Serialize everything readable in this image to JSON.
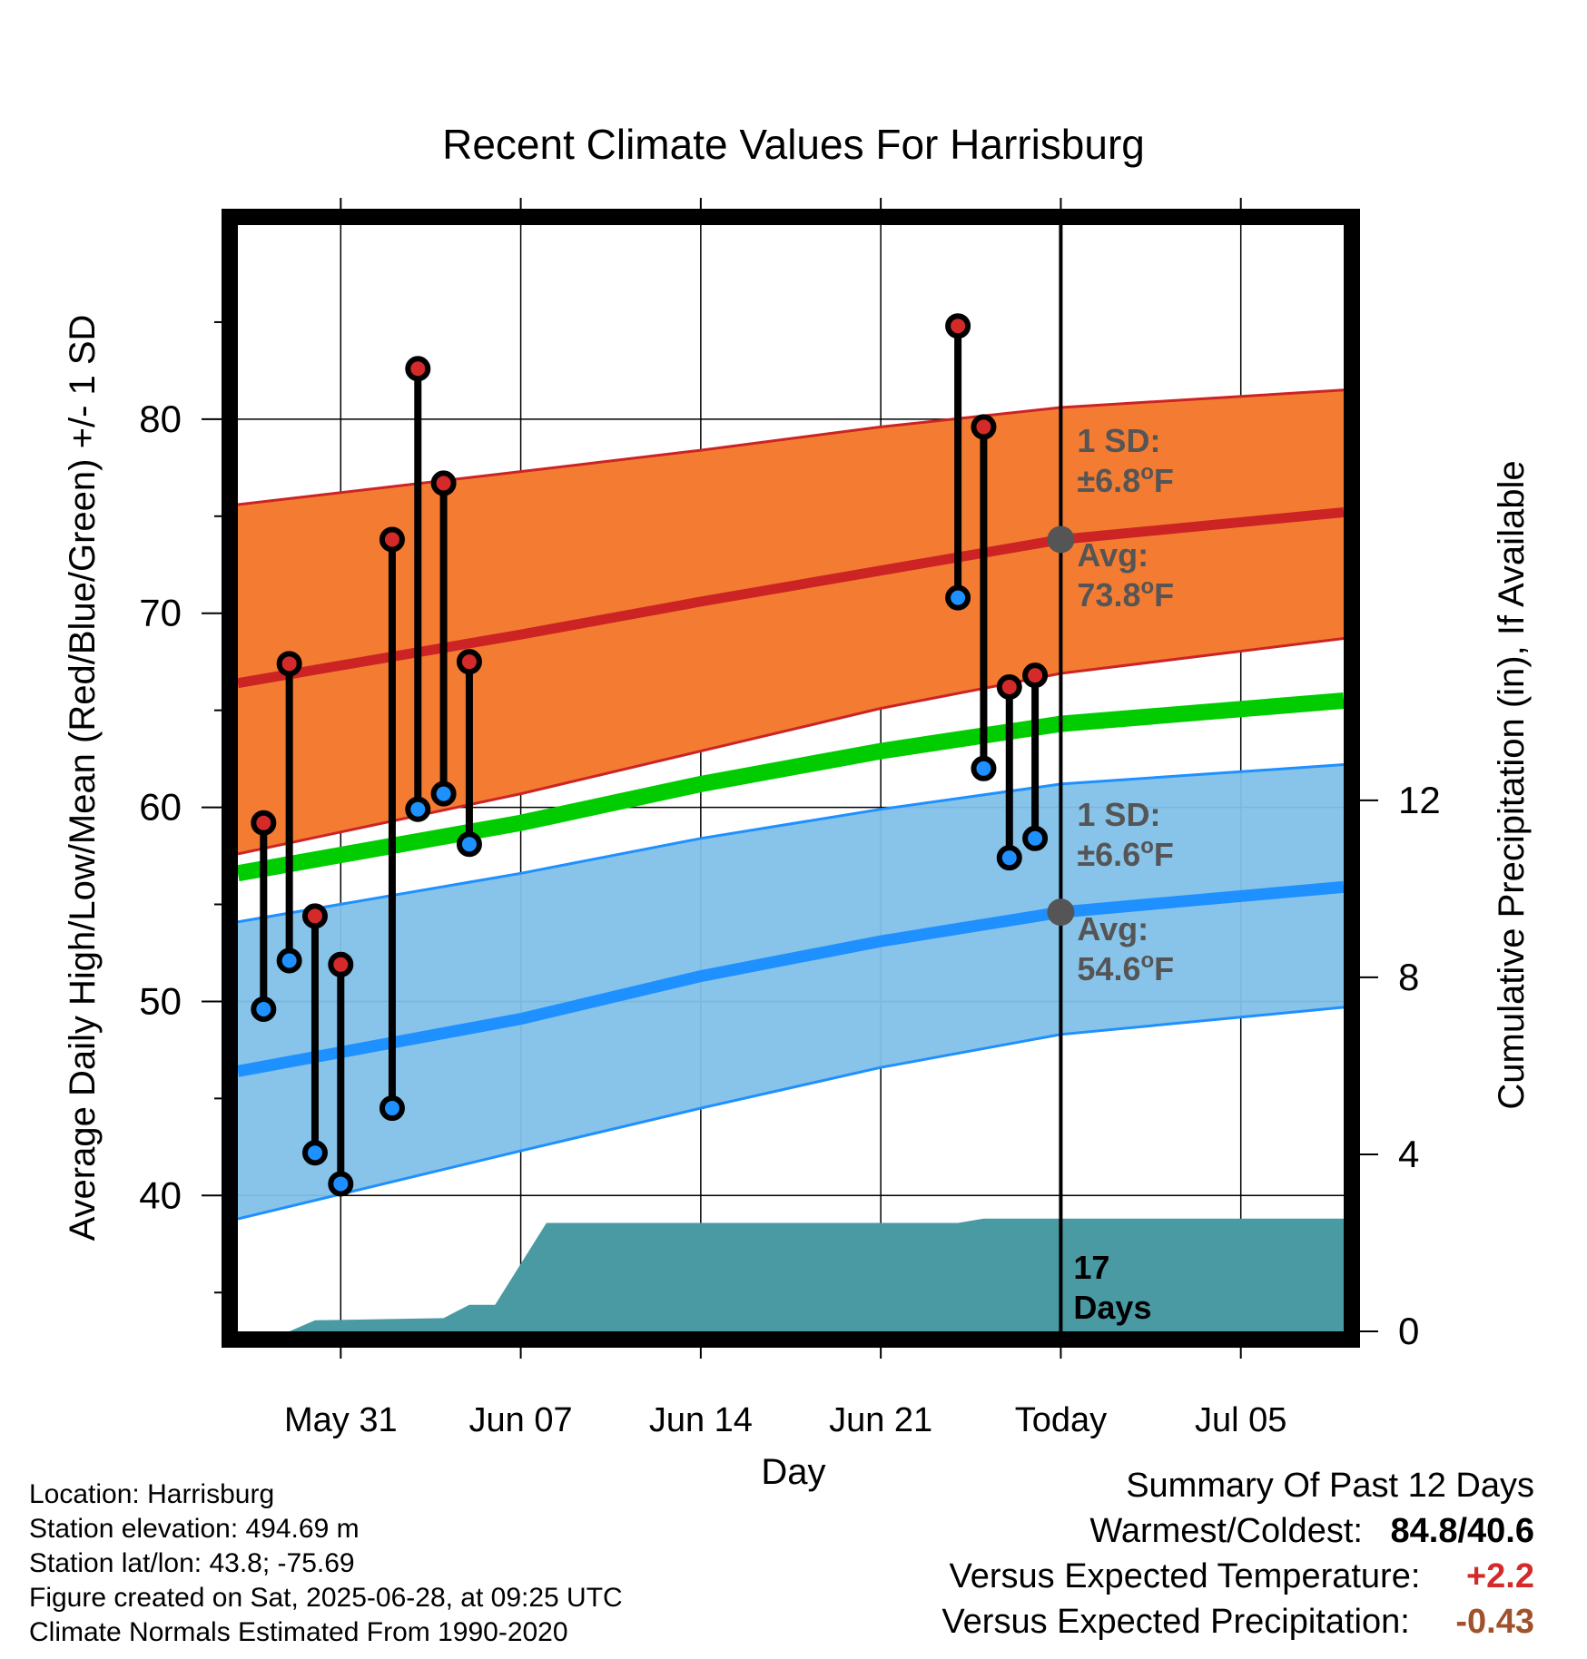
{
  "chart_data": {
    "type": "line",
    "title": "Recent Climate Values For Harrisburg",
    "xlabel": "Day",
    "ylabel": "Average Daily High/Low/Mean (Red/Blue/Green) +/- 1 SD",
    "y2label": "Cumulative Precipitation (in), If Available",
    "xlim": [
      "2025-05-27",
      "2025-07-09"
    ],
    "ylim": [
      33,
      90
    ],
    "y2lim": [
      0,
      25
    ],
    "grid": true,
    "x_ticks": [
      "May 31",
      "Jun 07",
      "Jun 14",
      "Jun 21",
      "Today",
      "Jul 05"
    ],
    "x_tick_dates": [
      "2025-05-31",
      "2025-06-07",
      "2025-06-14",
      "2025-06-21",
      "2025-06-28",
      "2025-07-05"
    ],
    "y_ticks": [
      40,
      50,
      60,
      70,
      80
    ],
    "y2_ticks": [
      0,
      4,
      8,
      12
    ],
    "today": "2025-06-28",
    "normal_dates": [
      "2025-05-27",
      "2025-06-07",
      "2025-06-14",
      "2025-06-21",
      "2025-06-28",
      "2025-07-09"
    ],
    "normal_high": [
      66.4,
      68.9,
      70.6,
      72.2,
      73.8,
      75.2
    ],
    "normal_high_upper": [
      75.6,
      77.3,
      78.4,
      79.6,
      80.6,
      81.5
    ],
    "normal_high_lower": [
      57.6,
      60.7,
      62.9,
      65.1,
      66.9,
      68.7
    ],
    "normal_mean": [
      56.6,
      59.2,
      61.2,
      62.9,
      64.3,
      65.5
    ],
    "normal_low": [
      46.4,
      49.1,
      51.3,
      53.1,
      54.6,
      55.9
    ],
    "normal_low_upper": [
      54.1,
      56.6,
      58.4,
      59.9,
      61.2,
      62.2
    ],
    "normal_low_lower": [
      38.8,
      42.3,
      44.5,
      46.6,
      48.3,
      49.7
    ],
    "observations": [
      {
        "date": "2025-05-28",
        "high": 59.2,
        "low": 49.6
      },
      {
        "date": "2025-05-29",
        "high": 67.4,
        "low": 52.1
      },
      {
        "date": "2025-05-30",
        "high": 54.4,
        "low": 42.2
      },
      {
        "date": "2025-05-31",
        "high": 51.9,
        "low": 40.6
      },
      {
        "date": "2025-06-02",
        "high": 73.8,
        "low": 44.5
      },
      {
        "date": "2025-06-03",
        "high": 82.6,
        "low": 59.9
      },
      {
        "date": "2025-06-04",
        "high": 76.7,
        "low": 60.7
      },
      {
        "date": "2025-06-05",
        "high": 67.5,
        "low": 58.1
      },
      {
        "date": "2025-06-24",
        "high": 84.8,
        "low": 70.8
      },
      {
        "date": "2025-06-25",
        "high": 79.6,
        "low": 62.0
      },
      {
        "date": "2025-06-26",
        "high": 66.2,
        "low": 57.4
      },
      {
        "date": "2025-06-27",
        "high": 66.8,
        "low": 58.4
      }
    ],
    "precip_dates": [
      "2025-05-27",
      "2025-05-29",
      "2025-05-30",
      "2025-06-04",
      "2025-06-05",
      "2025-06-06",
      "2025-06-08",
      "2025-06-24",
      "2025-06-25",
      "2025-07-09"
    ],
    "precip_cum": [
      0.0,
      0.0,
      0.25,
      0.3,
      0.6,
      0.6,
      2.45,
      2.45,
      2.55,
      2.55
    ],
    "high_annotation": {
      "sd_label": "1 SD:",
      "sd_value": "±6.8",
      "avg_label": "Avg:",
      "avg_value": "73.8",
      "unit": "F",
      "degree": "o"
    },
    "low_annotation": {
      "sd_label": "1 SD:",
      "sd_value": "±6.6",
      "avg_label": "Avg:",
      "avg_value": "54.6",
      "unit": "F",
      "degree": "o"
    },
    "days_label": [
      "17",
      "Days"
    ],
    "colors": {
      "high_band": "#f47c32",
      "high_line": "#cc2424",
      "low_band": "#82c0e8",
      "low_line": "#1e90ff",
      "mean_line": "#00cc00",
      "precip": "#4a9aa4",
      "annotation": "#555555",
      "high_dot": "#d42a2a",
      "low_dot": "#1e90ff",
      "today_dot": "#555555"
    }
  },
  "info": {
    "location": "Location: Harrisburg",
    "elevation": "Station elevation: 494.69 m",
    "latlon": "Station lat/lon: 43.8; -75.69",
    "created": "Figure created on Sat, 2025-06-28, at 09:25 UTC",
    "normals": "Climate Normals Estimated From 1990-2020"
  },
  "summary": {
    "title": "Summary Of Past 12 Days",
    "warm_cold_label": "Warmest/Coldest:",
    "warm_cold_value": "84.8/40.6",
    "temp_label": "Versus Expected Temperature:",
    "temp_value": "+2.2",
    "precip_label": "Versus Expected Precipitation:",
    "precip_value": "-0.43",
    "temp_color": "#d42a2a",
    "precip_color": "#a0522d"
  }
}
